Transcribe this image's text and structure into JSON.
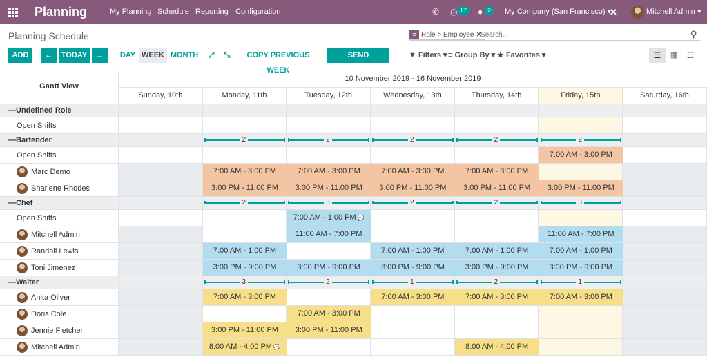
{
  "colors": {
    "brand": "#875a7b",
    "primary": "#00a09d",
    "orange": "#f4c5a3",
    "blue": "#b3dcef",
    "yellow": "#f7df8a",
    "today": "#fdf7e3",
    "group": "#eceef0",
    "unavailable": "#e9ecef"
  },
  "topbar": {
    "app_title": "Planning",
    "menus": [
      "My Planning",
      "Schedule",
      "Reporting",
      "Configuration"
    ],
    "activity_count": "17",
    "messages_count": "2",
    "company": "My Company (San Francisco)",
    "user": "Mitchell Admin",
    "icons": {
      "phone": "phone-icon",
      "activity": "clock-icon",
      "messages": "chat-icon",
      "debug": "wrench-icon"
    }
  },
  "control": {
    "breadcrumb": "Planning Schedule",
    "search_facet_label": "Role > Employee",
    "search_placeholder": "Search...",
    "add": "ADD",
    "prev": "←",
    "today": "TODAY",
    "next": "→",
    "scales": [
      "DAY",
      "WEEK",
      "MONTH"
    ],
    "active_scale": "WEEK",
    "copy_previous": "COPY PREVIOUS WEEK",
    "send_schedule": "SEND SCHEDULE",
    "filters": "Filters",
    "group_by": "Group By",
    "favorites": "Favorites"
  },
  "gantt": {
    "title": "Gantt View",
    "range": "10 November 2019 - 16 November 2019",
    "days": [
      "Sunday, 10th",
      "Monday, 11th",
      "Tuesday, 12th",
      "Wednesday, 13th",
      "Thursday, 14th",
      "Friday, 15th",
      "Saturday, 16th"
    ],
    "today_index": 5,
    "rows": [
      {
        "type": "group",
        "label": "Undefined Role"
      },
      {
        "type": "row",
        "label": "Open Shifts",
        "avatar": false,
        "cells": [
          "",
          "",
          "",
          "",
          "",
          "",
          ""
        ]
      },
      {
        "type": "group",
        "label": "Bartender",
        "counts": [
          "",
          "2",
          "2",
          "2",
          "2",
          "2",
          ""
        ]
      },
      {
        "type": "row",
        "label": "Open Shifts",
        "avatar": false,
        "cells": [
          "",
          "",
          "",
          "",
          "",
          "7:00 AM - 3:00 PM",
          ""
        ],
        "color": "orange"
      },
      {
        "type": "row",
        "label": "Marc Demo",
        "avatar": true,
        "cells": [
          "",
          "7:00 AM - 3:00 PM",
          "7:00 AM - 3:00 PM",
          "7:00 AM - 3:00 PM",
          "7:00 AM - 3:00 PM",
          "",
          ""
        ],
        "color": "orange"
      },
      {
        "type": "row",
        "label": "Sharlene Rhodes",
        "avatar": true,
        "cells": [
          "",
          "3:00 PM - 11:00 PM",
          "3:00 PM - 11:00 PM",
          "3:00 PM - 11:00 PM",
          "3:00 PM - 11:00 PM",
          "3:00 PM - 11:00 PM",
          ""
        ],
        "color": "orange"
      },
      {
        "type": "group",
        "label": "Chef",
        "counts": [
          "",
          "2",
          "3",
          "2",
          "2",
          "3",
          ""
        ]
      },
      {
        "type": "row",
        "label": "Open Shifts",
        "avatar": false,
        "cells": [
          "",
          "",
          "7:00 AM - 1:00 PM",
          "",
          "",
          "",
          ""
        ],
        "color": "blue",
        "comment": [
          2
        ]
      },
      {
        "type": "row",
        "label": "Mitchell Admin",
        "avatar": true,
        "cells": [
          "",
          "",
          "11:00 AM - 7:00 PM",
          "",
          "",
          "11:00 AM - 7:00 PM",
          ""
        ],
        "color": "blue"
      },
      {
        "type": "row",
        "label": "Randall Lewis",
        "avatar": true,
        "cells": [
          "",
          "7:00 AM - 1:00 PM",
          "",
          "7:00 AM - 1:00 PM",
          "7:00 AM - 1:00 PM",
          "7:00 AM - 1:00 PM",
          ""
        ],
        "color": "blue"
      },
      {
        "type": "row",
        "label": "Toni Jimenez",
        "avatar": true,
        "cells": [
          "",
          "3:00 PM - 9:00 PM",
          "3:00 PM - 9:00 PM",
          "3:00 PM - 9:00 PM",
          "3:00 PM - 9:00 PM",
          "3:00 PM - 9:00 PM",
          ""
        ],
        "color": "blue"
      },
      {
        "type": "group",
        "label": "Waiter",
        "counts": [
          "",
          "3",
          "2",
          "1",
          "2",
          "1",
          ""
        ]
      },
      {
        "type": "row",
        "label": "Anita Oliver",
        "avatar": true,
        "cells": [
          "",
          "7:00 AM - 3:00 PM",
          "",
          "7:00 AM - 3:00 PM",
          "7:00 AM - 3:00 PM",
          "7:00 AM - 3:00 PM",
          ""
        ],
        "color": "yellow"
      },
      {
        "type": "row",
        "label": "Doris Cole",
        "avatar": true,
        "cells": [
          "",
          "",
          "7:00 AM - 3:00 PM",
          "",
          "",
          "",
          ""
        ],
        "color": "yellow"
      },
      {
        "type": "row",
        "label": "Jennie Fletcher",
        "avatar": true,
        "cells": [
          "",
          "3:00 PM - 11:00 PM",
          "3:00 PM - 11:00 PM",
          "",
          "",
          "",
          ""
        ],
        "color": "yellow"
      },
      {
        "type": "row",
        "label": "Mitchell Admin",
        "avatar": true,
        "cells": [
          "",
          "8:00 AM - 4:00 PM",
          "",
          "",
          "8:00 AM - 4:00 PM",
          "",
          ""
        ],
        "color": "yellow",
        "comment": [
          1
        ]
      }
    ]
  }
}
